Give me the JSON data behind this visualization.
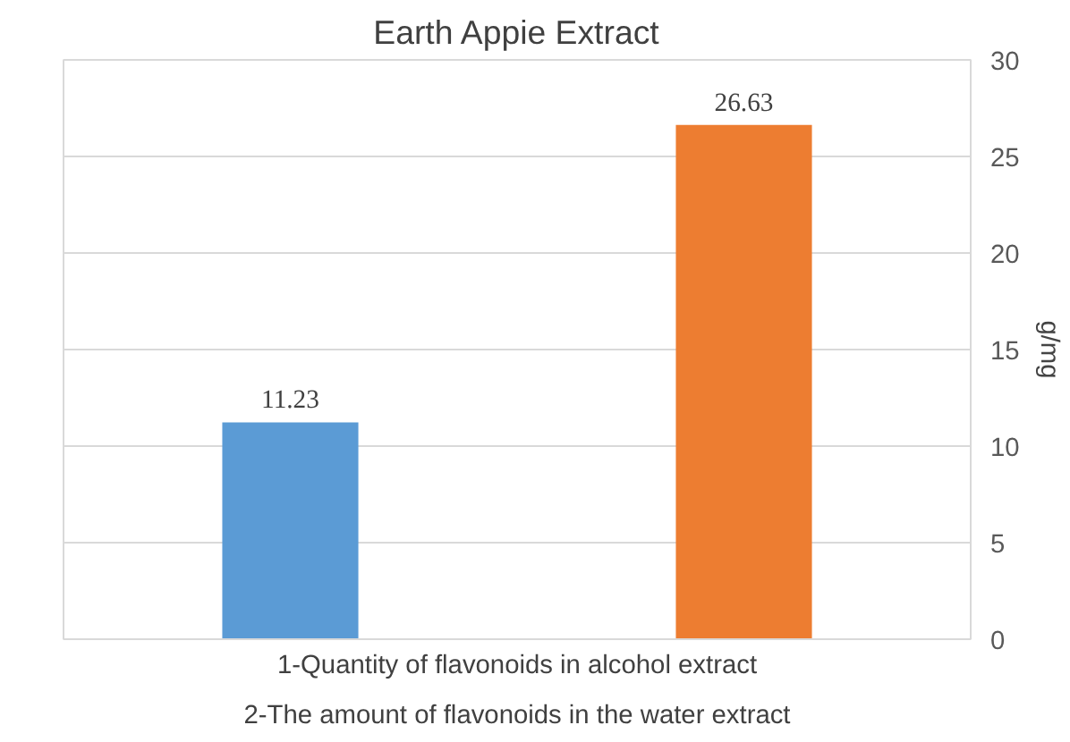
{
  "chart_data": {
    "type": "bar",
    "title": "Earth Appie Extract",
    "ylabel": "g/mg",
    "categories": [
      null,
      null
    ],
    "values": [
      11.23,
      26.63
    ],
    "colors": [
      "#5b9bd5",
      "#ed7d31"
    ],
    "ylim": [
      0,
      30
    ],
    "yticks": [
      0,
      5,
      10,
      15,
      20,
      25,
      30
    ],
    "grid": "y",
    "data_labels": true,
    "annotations": [
      "1-Quantity of flavonoids in alcohol extract",
      "2-The amount of flavonoids in the water extract"
    ]
  }
}
